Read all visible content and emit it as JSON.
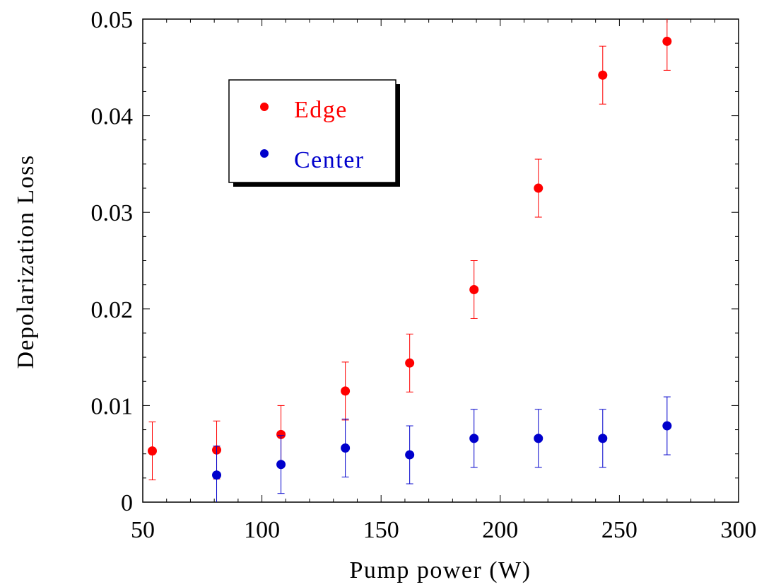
{
  "chart_data": {
    "type": "scatter",
    "xlabel": "Pump power (W)",
    "ylabel": "Depolarization Loss",
    "xlim": [
      50,
      300
    ],
    "ylim": [
      0,
      0.05
    ],
    "xticks": [
      50,
      100,
      150,
      200,
      250,
      300
    ],
    "yticks": [
      0,
      0.01,
      0.02,
      0.03,
      0.04,
      0.05
    ],
    "xtick_labels": [
      "50",
      "100",
      "150",
      "200",
      "250",
      "300"
    ],
    "ytick_labels": [
      "0",
      "0.01",
      "0.02",
      "0.03",
      "0.04",
      "0.05"
    ],
    "legend_position": "top-left",
    "grid": false,
    "series": [
      {
        "name": "Edge",
        "color": "#ff0000",
        "x": [
          54,
          81,
          108,
          135,
          162,
          189,
          216,
          243,
          270
        ],
        "y": [
          0.0053,
          0.0054,
          0.007,
          0.0115,
          0.0144,
          0.022,
          0.0325,
          0.0442,
          0.0477
        ],
        "error": [
          0.003,
          0.003,
          0.003,
          0.003,
          0.003,
          0.003,
          0.003,
          0.003,
          0.003
        ]
      },
      {
        "name": "Center",
        "color": "#0000cc",
        "x": [
          81,
          108,
          135,
          162,
          189,
          216,
          243,
          270
        ],
        "y": [
          0.0028,
          0.0039,
          0.0056,
          0.0049,
          0.0066,
          0.0066,
          0.0066,
          0.0079
        ],
        "error": [
          0.003,
          0.003,
          0.003,
          0.003,
          0.003,
          0.003,
          0.003,
          0.003
        ]
      }
    ]
  }
}
